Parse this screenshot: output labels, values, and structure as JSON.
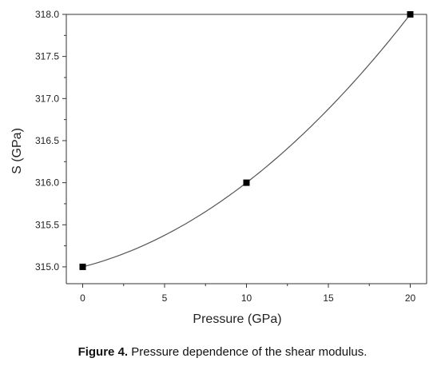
{
  "chart_data": {
    "type": "line",
    "xlabel": "Pressure (GPa)",
    "ylabel": "S  (GPa)",
    "xlim": [
      -1,
      21
    ],
    "ylim": [
      314.8,
      318.0
    ],
    "x_ticks": [
      0,
      5,
      10,
      15,
      20
    ],
    "x_tick_labels": [
      "0",
      "5",
      "10",
      "15",
      "20"
    ],
    "y_ticks": [
      315.0,
      315.5,
      316.0,
      316.5,
      317.0,
      317.5,
      318.0
    ],
    "y_tick_labels": [
      "315.0",
      "315.5",
      "316.0",
      "316.5",
      "317.0",
      "317.5",
      "318.0"
    ],
    "series": [
      {
        "x": [
          0,
          10,
          20
        ],
        "y": [
          315.0,
          316.0,
          318.0
        ],
        "marker": "square",
        "curve": "smooth"
      }
    ],
    "colors": {
      "line": "#555555",
      "marker": "#000000",
      "axis": "#333333"
    },
    "grid": false
  },
  "caption": {
    "label": "Figure 4.",
    "text": " Pressure dependence of the shear modulus."
  }
}
